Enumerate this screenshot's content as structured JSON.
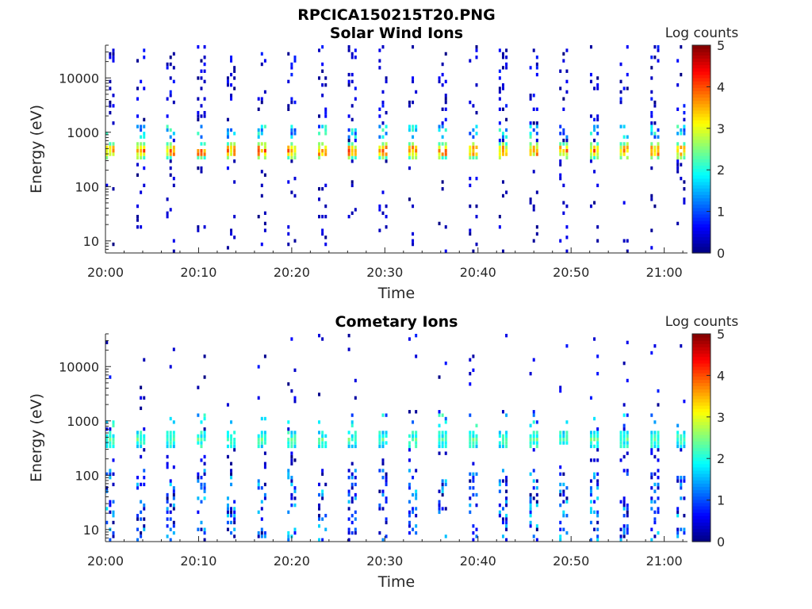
{
  "figure": {
    "title": "RPCICA150215T20.PNG"
  },
  "chart_data": [
    {
      "type": "heatmap",
      "title": "Solar Wind Ions",
      "xlabel": "Time",
      "ylabel": "Energy (eV)",
      "x_ticks": [
        "20:00",
        "20:10",
        "20:20",
        "20:30",
        "20:40",
        "20:50",
        "21:00"
      ],
      "y_ticks": [
        "10",
        "100",
        "1000",
        "10000"
      ],
      "y_scale": "log",
      "xlim": [
        "20:00",
        "21:02"
      ],
      "ylim": [
        6,
        40000
      ],
      "colorbar": {
        "label": "Log counts",
        "ticks": [
          "0",
          "1",
          "2",
          "3",
          "4",
          "5"
        ],
        "range": [
          0,
          5
        ],
        "colormap": "jet"
      },
      "sweep_times_min": [
        0.5,
        3.8,
        7.0,
        10.3,
        13.5,
        16.8,
        20.0,
        23.3,
        26.5,
        29.8,
        33.0,
        36.2,
        39.5,
        42.7,
        46.0,
        49.2,
        52.5,
        55.7,
        59.0,
        61.8
      ],
      "peaks": [
        {
          "energy_ev": 450,
          "log_counts": 3.5
        },
        {
          "energy_ev": 1000,
          "log_counts": 2.3
        }
      ]
    },
    {
      "type": "heatmap",
      "title": "Cometary Ions",
      "xlabel": "Time",
      "ylabel": "Energy (eV)",
      "x_ticks": [
        "20:00",
        "20:10",
        "20:20",
        "20:30",
        "20:40",
        "20:50",
        "21:00"
      ],
      "y_ticks": [
        "10",
        "100",
        "1000",
        "10000"
      ],
      "y_scale": "log",
      "xlim": [
        "20:00",
        "21:02"
      ],
      "ylim": [
        6,
        40000
      ],
      "colorbar": {
        "label": "Log counts",
        "ticks": [
          "0",
          "1",
          "2",
          "3",
          "4",
          "5"
        ],
        "range": [
          0,
          5
        ],
        "colormap": "jet"
      },
      "sweep_times_min": [
        0.5,
        3.8,
        7.0,
        10.3,
        13.5,
        16.8,
        20.0,
        23.3,
        26.5,
        29.8,
        33.0,
        36.2,
        39.5,
        42.7,
        46.0,
        49.2,
        52.5,
        55.7,
        59.0,
        61.8
      ],
      "peaks": [
        {
          "energy_ev": 450,
          "log_counts": 2.3
        },
        {
          "energy_ev": 30,
          "log_counts": 1.5
        }
      ]
    }
  ]
}
